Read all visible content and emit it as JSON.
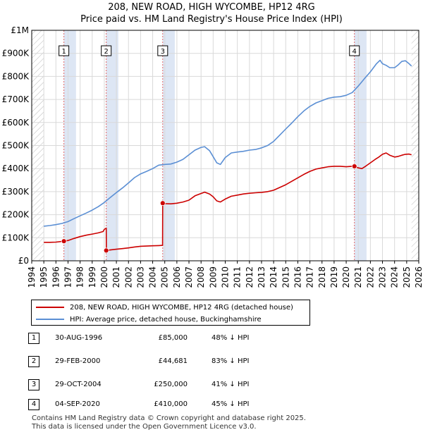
{
  "chart_data": {
    "type": "line",
    "title": "208, NEW ROAD, HIGH WYCOMBE, HP12 4RG",
    "subtitle": "Price paid vs. HM Land Registry's House Price Index (HPI)",
    "xlim": [
      1994,
      2026
    ],
    "ylim": [
      0,
      1000000
    ],
    "x_ticks": [
      1994,
      1995,
      1996,
      1997,
      1998,
      1999,
      2000,
      2001,
      2002,
      2003,
      2004,
      2005,
      2006,
      2007,
      2008,
      2009,
      2010,
      2011,
      2012,
      2013,
      2014,
      2015,
      2016,
      2017,
      2018,
      2019,
      2020,
      2021,
      2022,
      2023,
      2024,
      2025,
      2026
    ],
    "y_ticks": [
      {
        "value": 0,
        "label": "£0"
      },
      {
        "value": 100000,
        "label": "£100K"
      },
      {
        "value": 200000,
        "label": "£200K"
      },
      {
        "value": 300000,
        "label": "£300K"
      },
      {
        "value": 400000,
        "label": "£400K"
      },
      {
        "value": 500000,
        "label": "£500K"
      },
      {
        "value": 600000,
        "label": "£600K"
      },
      {
        "value": 700000,
        "label": "£700K"
      },
      {
        "value": 800000,
        "label": "£800K"
      },
      {
        "value": 900000,
        "label": "£900K"
      },
      {
        "value": 1000000,
        "label": "£1M"
      }
    ],
    "grid": true,
    "data_start": 1995,
    "data_end": 2025.4,
    "series": [
      {
        "name": "208, NEW ROAD, HIGH WYCOMBE, HP12 4RG (detached house)",
        "color": "#cc0000",
        "points": [
          [
            1995.0,
            80000
          ],
          [
            1995.5,
            80000
          ],
          [
            1996.0,
            81000
          ],
          [
            1996.66,
            85000
          ],
          [
            1997.0,
            88000
          ],
          [
            1997.5,
            97000
          ],
          [
            1998.0,
            105000
          ],
          [
            1998.5,
            111000
          ],
          [
            1999.0,
            116000
          ],
          [
            1999.5,
            121000
          ],
          [
            1999.9,
            127000
          ],
          [
            2000.0,
            136000
          ],
          [
            2000.16,
            142000
          ],
          [
            2000.17,
            44681
          ],
          [
            2000.5,
            47000
          ],
          [
            2001.0,
            50000
          ],
          [
            2001.5,
            53000
          ],
          [
            2002.0,
            56000
          ],
          [
            2002.5,
            60000
          ],
          [
            2003.0,
            63000
          ],
          [
            2003.5,
            64000
          ],
          [
            2004.0,
            65000
          ],
          [
            2004.5,
            66000
          ],
          [
            2004.82,
            67000
          ],
          [
            2004.83,
            250000
          ],
          [
            2005.0,
            248000
          ],
          [
            2005.5,
            247000
          ],
          [
            2006.0,
            250000
          ],
          [
            2006.5,
            255000
          ],
          [
            2007.0,
            263000
          ],
          [
            2007.5,
            282000
          ],
          [
            2008.0,
            292000
          ],
          [
            2008.3,
            298000
          ],
          [
            2008.7,
            290000
          ],
          [
            2009.0,
            278000
          ],
          [
            2009.3,
            260000
          ],
          [
            2009.6,
            255000
          ],
          [
            2010.0,
            268000
          ],
          [
            2010.5,
            280000
          ],
          [
            2011.0,
            285000
          ],
          [
            2011.5,
            290000
          ],
          [
            2012.0,
            293000
          ],
          [
            2012.5,
            295000
          ],
          [
            2013.0,
            297000
          ],
          [
            2013.5,
            300000
          ],
          [
            2014.0,
            306000
          ],
          [
            2014.5,
            318000
          ],
          [
            2015.0,
            330000
          ],
          [
            2015.5,
            345000
          ],
          [
            2016.0,
            360000
          ],
          [
            2016.5,
            375000
          ],
          [
            2017.0,
            388000
          ],
          [
            2017.5,
            398000
          ],
          [
            2018.0,
            403000
          ],
          [
            2018.5,
            408000
          ],
          [
            2019.0,
            410000
          ],
          [
            2019.5,
            410000
          ],
          [
            2020.0,
            408000
          ],
          [
            2020.5,
            410000
          ],
          [
            2020.68,
            410000
          ],
          [
            2021.0,
            403000
          ],
          [
            2021.3,
            400000
          ],
          [
            2021.6,
            410000
          ],
          [
            2022.0,
            425000
          ],
          [
            2022.4,
            440000
          ],
          [
            2022.7,
            450000
          ],
          [
            2023.0,
            462000
          ],
          [
            2023.3,
            468000
          ],
          [
            2023.6,
            458000
          ],
          [
            2024.0,
            450000
          ],
          [
            2024.3,
            453000
          ],
          [
            2024.6,
            458000
          ],
          [
            2024.9,
            462000
          ],
          [
            2025.2,
            463000
          ],
          [
            2025.4,
            460000
          ]
        ]
      },
      {
        "name": "HPI: Average price, detached house, Buckinghamshire",
        "color": "#5b8fd4",
        "points": [
          [
            1995.0,
            150000
          ],
          [
            1995.5,
            153000
          ],
          [
            1996.0,
            157000
          ],
          [
            1996.5,
            162000
          ],
          [
            1997.0,
            170000
          ],
          [
            1997.5,
            183000
          ],
          [
            1998.0,
            195000
          ],
          [
            1998.5,
            207000
          ],
          [
            1999.0,
            220000
          ],
          [
            1999.5,
            235000
          ],
          [
            2000.0,
            253000
          ],
          [
            2000.5,
            275000
          ],
          [
            2001.0,
            296000
          ],
          [
            2001.5,
            316000
          ],
          [
            2002.0,
            338000
          ],
          [
            2002.5,
            361000
          ],
          [
            2003.0,
            377000
          ],
          [
            2003.5,
            388000
          ],
          [
            2004.0,
            400000
          ],
          [
            2004.5,
            415000
          ],
          [
            2005.0,
            418000
          ],
          [
            2005.5,
            420000
          ],
          [
            2006.0,
            428000
          ],
          [
            2006.5,
            440000
          ],
          [
            2007.0,
            460000
          ],
          [
            2007.5,
            480000
          ],
          [
            2008.0,
            492000
          ],
          [
            2008.3,
            495000
          ],
          [
            2008.7,
            478000
          ],
          [
            2009.0,
            452000
          ],
          [
            2009.3,
            425000
          ],
          [
            2009.6,
            418000
          ],
          [
            2010.0,
            448000
          ],
          [
            2010.5,
            468000
          ],
          [
            2011.0,
            472000
          ],
          [
            2011.5,
            475000
          ],
          [
            2012.0,
            480000
          ],
          [
            2012.5,
            483000
          ],
          [
            2013.0,
            490000
          ],
          [
            2013.5,
            500000
          ],
          [
            2014.0,
            518000
          ],
          [
            2014.5,
            545000
          ],
          [
            2015.0,
            572000
          ],
          [
            2015.5,
            598000
          ],
          [
            2016.0,
            625000
          ],
          [
            2016.5,
            650000
          ],
          [
            2017.0,
            670000
          ],
          [
            2017.5,
            685000
          ],
          [
            2018.0,
            695000
          ],
          [
            2018.5,
            705000
          ],
          [
            2019.0,
            710000
          ],
          [
            2019.5,
            712000
          ],
          [
            2020.0,
            718000
          ],
          [
            2020.5,
            730000
          ],
          [
            2021.0,
            758000
          ],
          [
            2021.5,
            790000
          ],
          [
            2022.0,
            820000
          ],
          [
            2022.5,
            855000
          ],
          [
            2022.8,
            870000
          ],
          [
            2023.0,
            855000
          ],
          [
            2023.3,
            848000
          ],
          [
            2023.6,
            838000
          ],
          [
            2024.0,
            838000
          ],
          [
            2024.3,
            850000
          ],
          [
            2024.6,
            865000
          ],
          [
            2024.9,
            868000
          ],
          [
            2025.2,
            855000
          ],
          [
            2025.4,
            845000
          ]
        ]
      }
    ],
    "sale_markers": [
      {
        "n": "1",
        "x": 1996.66,
        "y": 85000
      },
      {
        "n": "2",
        "x": 2000.16,
        "y": 44681
      },
      {
        "n": "3",
        "x": 2004.83,
        "y": 250000
      },
      {
        "n": "4",
        "x": 2020.68,
        "y": 410000
      }
    ]
  },
  "legend": {
    "property_label": "208, NEW ROAD, HIGH WYCOMBE, HP12 4RG (detached house)",
    "hpi_label": "HPI: Average price, detached house, Buckinghamshire"
  },
  "transactions": [
    {
      "n": "1",
      "date": "30-AUG-1996",
      "price": "£85,000",
      "hpi": "48% ↓ HPI"
    },
    {
      "n": "2",
      "date": "29-FEB-2000",
      "price": "£44,681",
      "hpi": "83% ↓ HPI"
    },
    {
      "n": "3",
      "date": "29-OCT-2004",
      "price": "£250,000",
      "hpi": "41% ↓ HPI"
    },
    {
      "n": "4",
      "date": "04-SEP-2020",
      "price": "£410,000",
      "hpi": "45% ↓ HPI"
    }
  ],
  "footer": {
    "line1": "Contains HM Land Registry data © Crown copyright and database right 2025.",
    "line2": "This data is licensed under the Open Government Licence v3.0."
  },
  "colors": {
    "property": "#cc0000",
    "hpi": "#5b8fd4",
    "shade": "#dde6f4",
    "hatch": "#bbbbbb"
  }
}
